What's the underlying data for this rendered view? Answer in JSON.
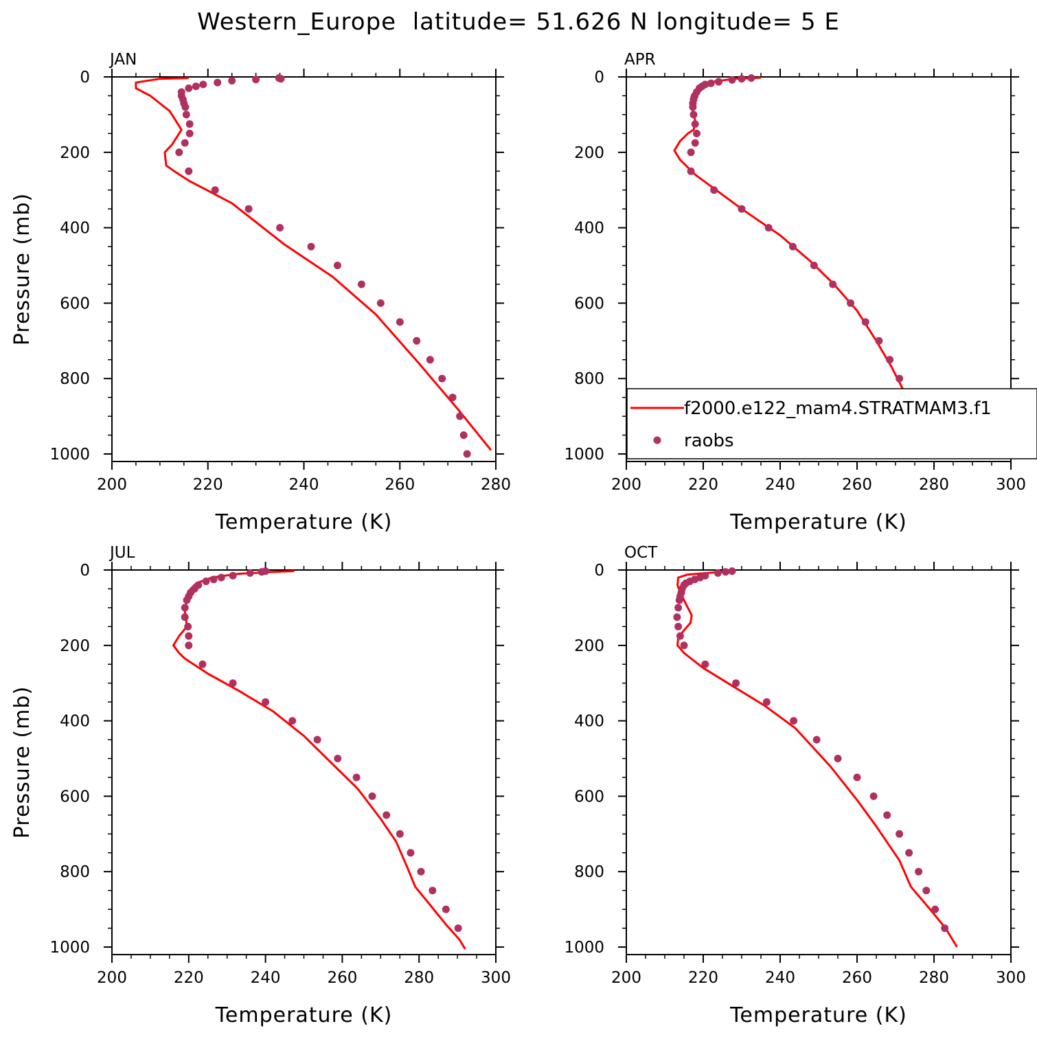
{
  "figure": {
    "title": "Western_Europe  latitude= 51.626 N longitude= 5 E"
  },
  "colors": {
    "model_line": "#ff0000",
    "obs_marker": "#b03060",
    "axes": "#000000"
  },
  "legend": {
    "panel": "APR",
    "entries": [
      {
        "label": "f2000.e122_mam4.STRATMAM3.f1",
        "symbol": "line",
        "color": "#ff0000"
      },
      {
        "label": "raobs",
        "symbol": "circle",
        "color": "#b03060"
      }
    ]
  },
  "chart_data": [
    {
      "type": "line",
      "panel_title": "JAN",
      "xlabel": "Temperature (K)",
      "ylabel": "Pressure (mb)",
      "xlim": [
        200,
        280
      ],
      "ylim": [
        1020,
        0
      ],
      "xticks": [
        "200",
        "220",
        "240",
        "260",
        "280"
      ],
      "yticks": [
        "0",
        "200",
        "400",
        "600",
        "800",
        "1000"
      ],
      "series": [
        {
          "name": "f2000.e122_mam4.STRATMAM3.f1",
          "kind": "line",
          "points": [
            [
              216,
              3
            ],
            [
              210,
              5
            ],
            [
              205,
              15
            ],
            [
              205,
              30
            ],
            [
              208,
              50
            ],
            [
              212,
              90
            ],
            [
              214,
              130
            ],
            [
              214.5,
              140
            ],
            [
              214,
              150
            ],
            [
              212.5,
              180
            ],
            [
              211,
              200
            ],
            [
              211.3,
              235
            ],
            [
              213,
              250
            ],
            [
              216,
              275
            ],
            [
              225,
              335
            ],
            [
              236,
              445
            ],
            [
              246,
              530
            ],
            [
              255,
              630
            ],
            [
              264,
              760
            ],
            [
              272,
              880
            ],
            [
              279,
              990
            ]
          ]
        },
        {
          "name": "raobs",
          "kind": "scatter",
          "points": [
            [
              234.8,
              3
            ],
            [
              235.2,
              5
            ],
            [
              230,
              7
            ],
            [
              225,
              10
            ],
            [
              222,
              15
            ],
            [
              219,
              20
            ],
            [
              217.5,
              25
            ],
            [
              216,
              30
            ],
            [
              214.5,
              40
            ],
            [
              214.5,
              50
            ],
            [
              214.8,
              60
            ],
            [
              215,
              70
            ],
            [
              215.3,
              80
            ],
            [
              215.5,
              100
            ],
            [
              216.2,
              125
            ],
            [
              216.2,
              150
            ],
            [
              215.2,
              175
            ],
            [
              214,
              200
            ],
            [
              216,
              250
            ],
            [
              221.5,
              300
            ],
            [
              228.5,
              350
            ],
            [
              235,
              400
            ],
            [
              241.5,
              450
            ],
            [
              247,
              500
            ],
            [
              252,
              550
            ],
            [
              256,
              600
            ],
            [
              260,
              650
            ],
            [
              263.5,
              700
            ],
            [
              266.3,
              750
            ],
            [
              268.8,
              800
            ],
            [
              271,
              850
            ],
            [
              272.5,
              900
            ],
            [
              273.3,
              950
            ],
            [
              274,
              1000
            ]
          ]
        }
      ]
    },
    {
      "type": "line",
      "panel_title": "APR",
      "xlabel": "Temperature (K)",
      "ylabel": "",
      "xlim": [
        200,
        300
      ],
      "ylim": [
        1020,
        0
      ],
      "xticks": [
        "200",
        "220",
        "240",
        "260",
        "280",
        "300"
      ],
      "yticks": [
        "0",
        "200",
        "400",
        "600",
        "800",
        "1000"
      ],
      "series": [
        {
          "name": "f2000.e122_mam4.STRATMAM3.f1",
          "kind": "line",
          "points": [
            [
              235,
              2
            ],
            [
              228,
              5
            ],
            [
              223,
              12
            ],
            [
              220,
              20
            ],
            [
              218,
              35
            ],
            [
              217,
              50
            ],
            [
              216.8,
              70
            ],
            [
              217.5,
              100
            ],
            [
              218,
              120
            ],
            [
              217.5,
              140
            ],
            [
              216,
              150
            ],
            [
              214,
              170
            ],
            [
              212.5,
              195
            ],
            [
              214,
              220
            ],
            [
              216,
              240
            ],
            [
              218,
              260
            ],
            [
              222,
              290
            ],
            [
              230,
              350
            ],
            [
              240,
              420
            ],
            [
              248,
              490
            ],
            [
              254,
              550
            ],
            [
              260,
              620
            ],
            [
              265,
              700
            ],
            [
              269,
              770
            ],
            [
              272,
              830
            ],
            [
              276,
              900
            ],
            [
              280,
              950
            ],
            [
              283.5,
              1000
            ]
          ]
        },
        {
          "name": "raobs",
          "kind": "scatter",
          "points": [
            [
              232.5,
              3
            ],
            [
              230,
              5
            ],
            [
              227.5,
              8
            ],
            [
              224,
              13
            ],
            [
              222,
              17
            ],
            [
              220.5,
              20
            ],
            [
              219.7,
              25
            ],
            [
              219,
              30
            ],
            [
              218.3,
              40
            ],
            [
              217.8,
              50
            ],
            [
              217.5,
              60
            ],
            [
              217.3,
              70
            ],
            [
              217.3,
              80
            ],
            [
              217.5,
              100
            ],
            [
              217.9,
              125
            ],
            [
              218.3,
              150
            ],
            [
              217.9,
              175
            ],
            [
              216.8,
              200
            ],
            [
              216.8,
              250
            ],
            [
              222.8,
              300
            ],
            [
              230,
              350
            ],
            [
              237,
              400
            ],
            [
              243.3,
              450
            ],
            [
              248.8,
              500
            ],
            [
              253.7,
              550
            ],
            [
              258.3,
              600
            ],
            [
              262.2,
              650
            ],
            [
              265.7,
              700
            ],
            [
              268.5,
              750
            ],
            [
              271,
              800
            ],
            [
              273.7,
              850
            ],
            [
              276.8,
              900
            ],
            [
              280,
              950
            ]
          ]
        }
      ]
    },
    {
      "type": "line",
      "panel_title": "JUL",
      "xlabel": "Temperature (K)",
      "ylabel": "Pressure (mb)",
      "xlim": [
        200,
        300
      ],
      "ylim": [
        1020,
        0
      ],
      "xticks": [
        "200",
        "220",
        "240",
        "260",
        "280",
        "300"
      ],
      "yticks": [
        "0",
        "200",
        "400",
        "600",
        "800",
        "1000"
      ],
      "series": [
        {
          "name": "f2000.e122_mam4.STRATMAM3.f1",
          "kind": "line",
          "points": [
            [
              247.5,
              3
            ],
            [
              242,
              5
            ],
            [
              233,
              10
            ],
            [
              226,
              20
            ],
            [
              222,
              35
            ],
            [
              220.5,
              50
            ],
            [
              219.5,
              80
            ],
            [
              219,
              110
            ],
            [
              219.3,
              130
            ],
            [
              219.5,
              150
            ],
            [
              217.5,
              175
            ],
            [
              216,
              200
            ],
            [
              217.5,
              220
            ],
            [
              219,
              235
            ],
            [
              225,
              275
            ],
            [
              233,
              320
            ],
            [
              242,
              375
            ],
            [
              250,
              440
            ],
            [
              257,
              510
            ],
            [
              264,
              580
            ],
            [
              270,
              660
            ],
            [
              274,
              720
            ],
            [
              277,
              790
            ],
            [
              279,
              840
            ],
            [
              283,
              890
            ],
            [
              287,
              940
            ],
            [
              290.5,
              980
            ],
            [
              292,
              1005
            ]
          ]
        },
        {
          "name": "raobs",
          "kind": "scatter",
          "points": [
            [
              240,
              3
            ],
            [
              239,
              5
            ],
            [
              236,
              8
            ],
            [
              231.5,
              15
            ],
            [
              228.5,
              20
            ],
            [
              226.5,
              25
            ],
            [
              224.5,
              30
            ],
            [
              222.5,
              40
            ],
            [
              221.5,
              50
            ],
            [
              220.5,
              60
            ],
            [
              220,
              70
            ],
            [
              219.5,
              80
            ],
            [
              219,
              100
            ],
            [
              219,
              125
            ],
            [
              219.8,
              150
            ],
            [
              220,
              175
            ],
            [
              220,
              200
            ],
            [
              223.6,
              250
            ],
            [
              231.5,
              300
            ],
            [
              240,
              350
            ],
            [
              247,
              400
            ],
            [
              253.5,
              450
            ],
            [
              258.8,
              500
            ],
            [
              263.7,
              550
            ],
            [
              267.8,
              600
            ],
            [
              271.5,
              650
            ],
            [
              275,
              700
            ],
            [
              277.8,
              750
            ],
            [
              280.5,
              800
            ],
            [
              283.5,
              850
            ],
            [
              287,
              900
            ],
            [
              290.2,
              950
            ]
          ]
        }
      ]
    },
    {
      "type": "line",
      "panel_title": "OCT",
      "xlabel": "Temperature (K)",
      "ylabel": "",
      "xlim": [
        200,
        300
      ],
      "ylim": [
        1020,
        0
      ],
      "xticks": [
        "200",
        "220",
        "240",
        "260",
        "280",
        "300"
      ],
      "yticks": [
        "0",
        "200",
        "400",
        "600",
        "800",
        "1000"
      ],
      "series": [
        {
          "name": "f2000.e122_mam4.STRATMAM3.f1",
          "kind": "line",
          "points": [
            [
              227,
              3
            ],
            [
              221,
              8
            ],
            [
              216,
              12
            ],
            [
              213.5,
              20
            ],
            [
              213.3,
              40
            ],
            [
              214,
              60
            ],
            [
              215,
              80
            ],
            [
              216,
              100
            ],
            [
              217,
              120
            ],
            [
              216.7,
              140
            ],
            [
              215,
              160
            ],
            [
              213.5,
              180
            ],
            [
              213.3,
              200
            ],
            [
              215,
              220
            ],
            [
              220,
              260
            ],
            [
              228,
              310
            ],
            [
              236,
              360
            ],
            [
              244,
              420
            ],
            [
              253,
              520
            ],
            [
              260,
              610
            ],
            [
              265,
              680
            ],
            [
              271,
              770
            ],
            [
              274,
              840
            ],
            [
              279,
              900
            ],
            [
              283,
              950
            ],
            [
              286,
              1000
            ]
          ]
        },
        {
          "name": "raobs",
          "kind": "scatter",
          "points": [
            [
              227.5,
              3
            ],
            [
              225.8,
              5
            ],
            [
              223.8,
              8
            ],
            [
              220.5,
              15
            ],
            [
              219.2,
              20
            ],
            [
              217.8,
              25
            ],
            [
              216.5,
              30
            ],
            [
              215.5,
              35
            ],
            [
              215,
              40
            ],
            [
              214.5,
              50
            ],
            [
              214.3,
              60
            ],
            [
              214,
              70
            ],
            [
              213.8,
              80
            ],
            [
              213.5,
              100
            ],
            [
              213.2,
              125
            ],
            [
              213.5,
              150
            ],
            [
              214,
              175
            ],
            [
              215,
              200
            ],
            [
              220.5,
              250
            ],
            [
              228.5,
              300
            ],
            [
              236.5,
              350
            ],
            [
              243.5,
              400
            ],
            [
              249.5,
              450
            ],
            [
              255,
              500
            ],
            [
              260,
              550
            ],
            [
              264.3,
              600
            ],
            [
              267.8,
              650
            ],
            [
              271,
              700
            ],
            [
              273.5,
              750
            ],
            [
              276,
              800
            ],
            [
              278,
              850
            ],
            [
              280.3,
              900
            ],
            [
              282.8,
              950
            ]
          ]
        }
      ]
    }
  ]
}
